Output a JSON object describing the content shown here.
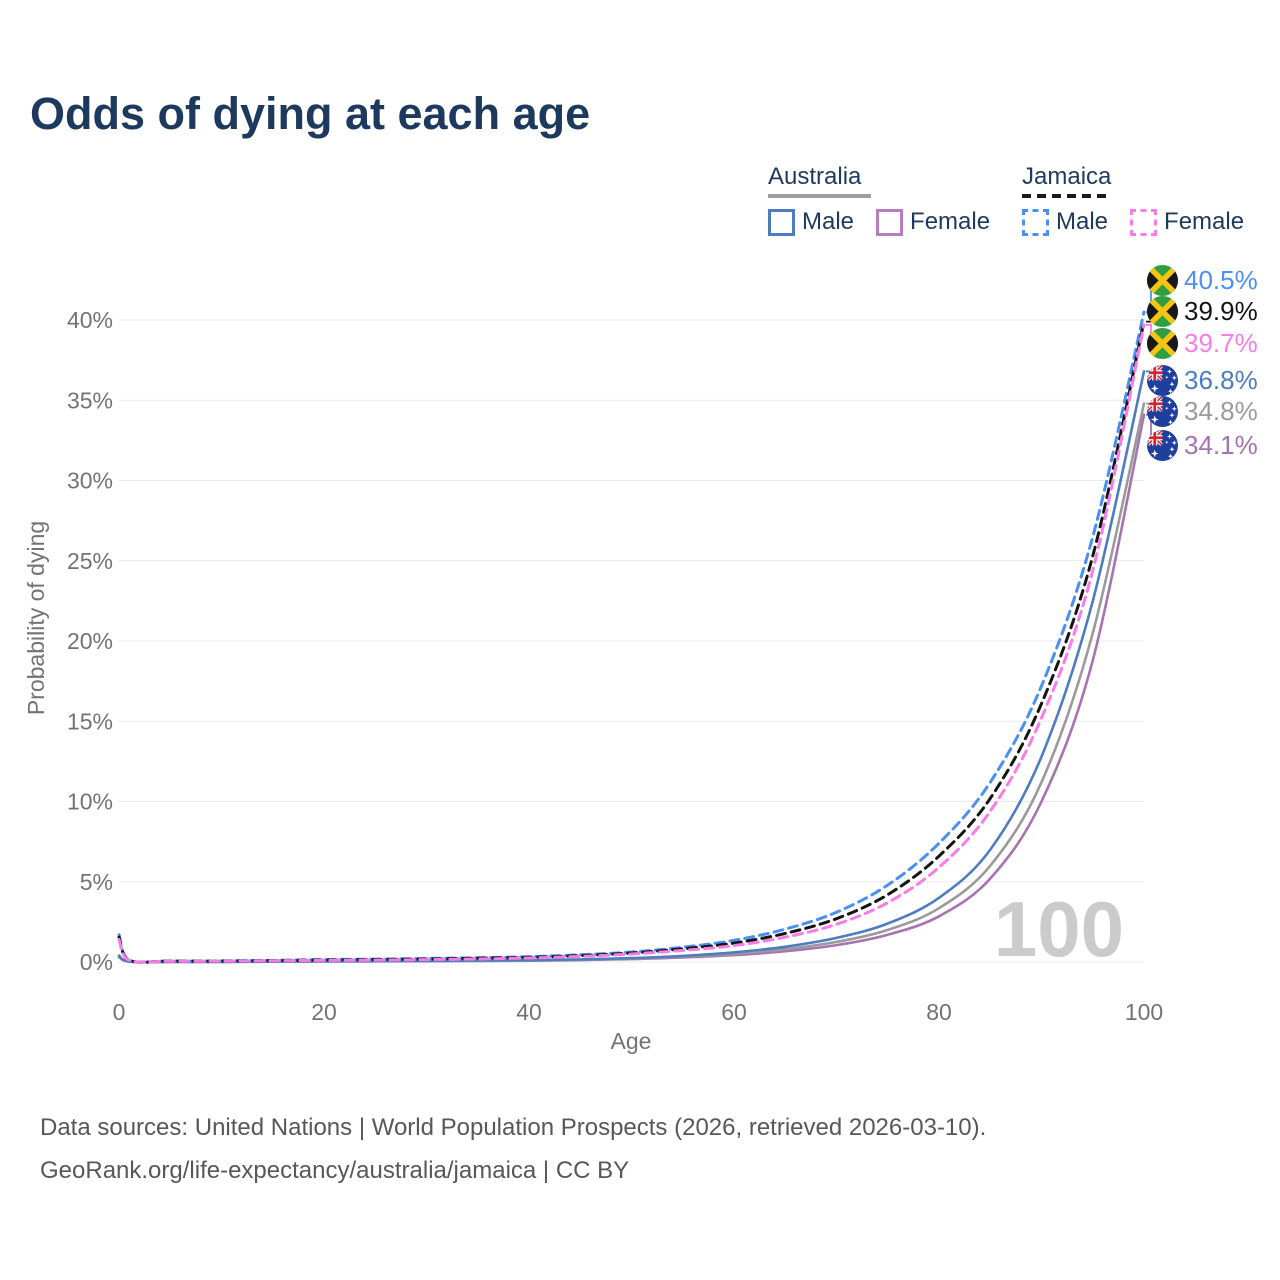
{
  "title": "Odds of dying at each age",
  "legend": {
    "groups": [
      {
        "label": "Australia",
        "line_style": "solid",
        "line_color": "#9e9e9e",
        "items": [
          {
            "label": "Male",
            "color": "#4d7cc0"
          },
          {
            "label": "Female",
            "color": "#b77dbe"
          }
        ]
      },
      {
        "label": "Jamaica",
        "line_style": "dashed",
        "line_color": "#1a1a1a",
        "items": [
          {
            "label": "Male",
            "color": "#4a90f4"
          },
          {
            "label": "Female",
            "color": "#f97ce4"
          }
        ]
      }
    ]
  },
  "chart_data": {
    "type": "line",
    "title": "Odds of dying at each age",
    "xlabel": "Age",
    "ylabel": "Probability of dying",
    "xlim": [
      0,
      100
    ],
    "ylim": [
      0,
      43
    ],
    "x_ticks": [
      "0",
      "20",
      "40",
      "60",
      "80",
      "100"
    ],
    "y_ticks": [
      "0%",
      "5%",
      "10%",
      "15%",
      "20%",
      "25%",
      "30%",
      "35%",
      "40%"
    ],
    "grid": "horizontal",
    "legend_position": "top-right",
    "watermark_age": "100",
    "x": [
      0,
      1,
      5,
      10,
      15,
      20,
      25,
      30,
      35,
      40,
      45,
      50,
      55,
      60,
      65,
      70,
      75,
      80,
      85,
      90,
      95,
      100
    ],
    "series": [
      {
        "id": "jamaica-male",
        "name": "Jamaica Male",
        "style": "dashed",
        "color": "#4a90f4",
        "flag": "jamaica-flag-icon",
        "end_label": "40.5%",
        "values": [
          1.7,
          0.12,
          0.06,
          0.07,
          0.1,
          0.15,
          0.18,
          0.22,
          0.27,
          0.33,
          0.45,
          0.62,
          0.92,
          1.35,
          2.05,
          3.1,
          4.8,
          7.4,
          11.2,
          17.2,
          26.5,
          40.5
        ]
      },
      {
        "id": "jamaica",
        "name": "Jamaica",
        "style": "dashed",
        "color": "#141414",
        "flag": "jamaica-flag-icon",
        "end_label": "39.9%",
        "values": [
          1.55,
          0.11,
          0.055,
          0.06,
          0.09,
          0.12,
          0.15,
          0.18,
          0.23,
          0.29,
          0.4,
          0.56,
          0.82,
          1.18,
          1.78,
          2.7,
          4.2,
          6.6,
          10.2,
          16.1,
          25.3,
          39.9
        ]
      },
      {
        "id": "jamaica-female",
        "name": "Jamaica Female",
        "style": "dashed",
        "color": "#f97ce4",
        "flag": "jamaica-flag-icon",
        "end_label": "39.7%",
        "values": [
          1.4,
          0.1,
          0.05,
          0.055,
          0.08,
          0.1,
          0.12,
          0.15,
          0.19,
          0.25,
          0.35,
          0.5,
          0.72,
          1.02,
          1.55,
          2.35,
          3.7,
          5.9,
          9.4,
          15.2,
          24.4,
          39.7
        ]
      },
      {
        "id": "australia-male",
        "name": "Australia Male",
        "style": "solid",
        "color": "#4d7cc0",
        "flag": "australia-flag-icon",
        "end_label": "36.8%",
        "values": [
          0.4,
          0.03,
          0.01,
          0.01,
          0.03,
          0.05,
          0.06,
          0.07,
          0.09,
          0.11,
          0.16,
          0.24,
          0.38,
          0.6,
          0.95,
          1.5,
          2.4,
          4.0,
          7.0,
          12.8,
          22.5,
          36.8
        ]
      },
      {
        "id": "australia",
        "name": "Australia",
        "style": "solid",
        "color": "#9a9a9a",
        "flag": "australia-flag-icon",
        "end_label": "34.8%",
        "values": [
          0.35,
          0.025,
          0.01,
          0.01,
          0.025,
          0.04,
          0.05,
          0.06,
          0.075,
          0.1,
          0.14,
          0.21,
          0.33,
          0.51,
          0.8,
          1.25,
          2.0,
          3.35,
          6.0,
          11.2,
          20.5,
          34.8
        ]
      },
      {
        "id": "australia-female",
        "name": "Australia Female",
        "style": "solid",
        "color": "#a672b0",
        "flag": "australia-flag-icon",
        "end_label": "34.1%",
        "values": [
          0.3,
          0.02,
          0.008,
          0.009,
          0.02,
          0.03,
          0.04,
          0.05,
          0.06,
          0.08,
          0.12,
          0.18,
          0.28,
          0.43,
          0.67,
          1.05,
          1.7,
          2.85,
          5.2,
          10.0,
          18.8,
          34.1
        ]
      }
    ]
  },
  "footer": {
    "source_line": "Data sources: United Nations | World Population Prospects (2026, retrieved 2026-03-10).",
    "attribution_line": "GeoRank.org/life-expectancy/australia/jamaica | CC BY"
  }
}
